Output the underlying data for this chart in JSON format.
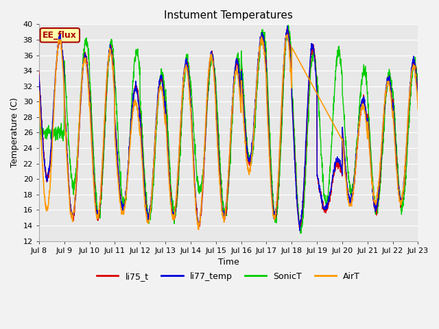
{
  "title": "Instument Temperatures",
  "xlabel": "Time",
  "ylabel": "Temperature (C)",
  "ylim": [
    12,
    40
  ],
  "yticks": [
    12,
    14,
    16,
    18,
    20,
    22,
    24,
    26,
    28,
    30,
    32,
    34,
    36,
    38,
    40
  ],
  "xtick_labels": [
    "Jul 8",
    "Jul 9",
    "Jul 10",
    "Jul 11",
    "Jul 12",
    "Jul 13",
    "Jul 14",
    "Jul 15",
    "Jul 16",
    "Jul 17",
    "Jul 18",
    "Jul 19",
    "Jul 20",
    "Jul 21",
    "Jul 22",
    "Jul 23"
  ],
  "colors": {
    "li75_t": "#dd0000",
    "li77_temp": "#0000dd",
    "SonicT": "#00cc00",
    "AirT": "#ff9900"
  },
  "annotation_text": "EE_flux",
  "annotation_bg": "#ffffaa",
  "annotation_border": "#aa0000",
  "bg_color": "#e8e8e8",
  "fig_bg": "#f2f2f2",
  "legend_entries": [
    "li75_t",
    "li77_temp",
    "SonicT",
    "AirT"
  ]
}
